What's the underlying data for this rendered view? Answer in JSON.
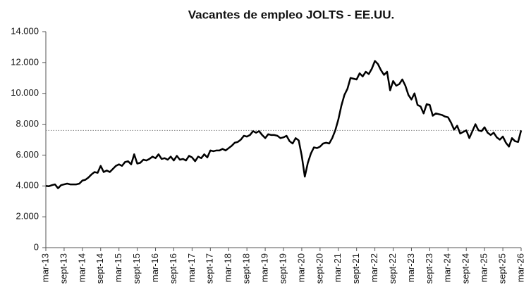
{
  "chart_data": {
    "type": "line",
    "title": "Vacantes de empleo JOLTS - EE.UU.",
    "categories": [
      "mar-13",
      null,
      null,
      null,
      null,
      null,
      "sept-13",
      null,
      null,
      null,
      null,
      null,
      "mar-14",
      null,
      null,
      null,
      null,
      null,
      "sept-14",
      null,
      null,
      null,
      null,
      null,
      "mar-15",
      null,
      null,
      null,
      null,
      null,
      "sept-15",
      null,
      null,
      null,
      null,
      null,
      "mar-16",
      null,
      null,
      null,
      null,
      null,
      "sept-16",
      null,
      null,
      null,
      null,
      null,
      "mar-17",
      null,
      null,
      null,
      null,
      null,
      "sept-17",
      null,
      null,
      null,
      null,
      null,
      "mar-18",
      null,
      null,
      null,
      null,
      null,
      "sept-18",
      null,
      null,
      null,
      null,
      null,
      "mar-19",
      null,
      null,
      null,
      null,
      null,
      "sept-19",
      null,
      null,
      null,
      null,
      null,
      "mar-20",
      null,
      null,
      null,
      null,
      null,
      "sept-20",
      null,
      null,
      null,
      null,
      null,
      "mar-21",
      null,
      null,
      null,
      null,
      null,
      "sept-21",
      null,
      null,
      null,
      null,
      null,
      "mar-22",
      null,
      null,
      null,
      null,
      null,
      "sept-22",
      null,
      null,
      null,
      null,
      null,
      "mar-23",
      null,
      null,
      null,
      null,
      null,
      "sept-23",
      null,
      null,
      null,
      null,
      null,
      "mar-24",
      null,
      null,
      null,
      null,
      null,
      "sept-24",
      null,
      null,
      null,
      null,
      null,
      "mar-25",
      null,
      null,
      null,
      null,
      null,
      "sept-25",
      null,
      null,
      null,
      null,
      null,
      "mar-26"
    ],
    "values": [
      4000,
      3980,
      4050,
      4100,
      3850,
      4050,
      4100,
      4150,
      4100,
      4100,
      4100,
      4150,
      4350,
      4400,
      4550,
      4750,
      4900,
      4850,
      5300,
      4900,
      5000,
      4900,
      5100,
      5300,
      5400,
      5300,
      5550,
      5600,
      5400,
      6050,
      5450,
      5500,
      5700,
      5650,
      5750,
      5900,
      5800,
      6050,
      5750,
      5800,
      5700,
      5900,
      5650,
      5950,
      5700,
      5750,
      5650,
      5950,
      5850,
      5600,
      5900,
      5800,
      6050,
      5850,
      6300,
      6250,
      6300,
      6300,
      6400,
      6300,
      6450,
      6600,
      6800,
      6850,
      7000,
      7250,
      7200,
      7300,
      7550,
      7450,
      7550,
      7300,
      7100,
      7350,
      7300,
      7300,
      7250,
      7100,
      7150,
      7250,
      6900,
      6750,
      7100,
      6950,
      5950,
      4600,
      5500,
      6100,
      6500,
      6450,
      6550,
      6750,
      6800,
      6750,
      7100,
      7600,
      8300,
      9200,
      9900,
      10300,
      11000,
      10950,
      10900,
      11300,
      11100,
      11400,
      11250,
      11600,
      12100,
      11900,
      11500,
      11200,
      11400,
      10200,
      10800,
      10500,
      10600,
      10900,
      10500,
      9900,
      9600,
      10000,
      9250,
      9150,
      8700,
      9300,
      9250,
      8550,
      8700,
      8650,
      8600,
      8500,
      8450,
      8100,
      7650,
      7900,
      7400,
      7500,
      7600,
      7100,
      7550,
      8000,
      7600,
      7550,
      7800,
      7450,
      7300,
      7450,
      7150,
      7000,
      7200,
      6800,
      6550,
      7100,
      6900,
      6850,
      7600
    ],
    "color": "#000000",
    "reference_line": 7600,
    "ylim": [
      0,
      14000
    ],
    "yticks": [
      0,
      {
        "value": 2000,
        "label": "2.000"
      },
      {
        "value": 4000,
        "label": "4.000"
      },
      {
        "value": 6000,
        "label": "6.000"
      },
      {
        "value": 8000,
        "label": "8.000"
      },
      {
        "value": 10000,
        "label": "10.000"
      },
      {
        "value": 12000,
        "label": "12.000"
      },
      {
        "value": 14000,
        "label": "14.000"
      }
    ]
  }
}
